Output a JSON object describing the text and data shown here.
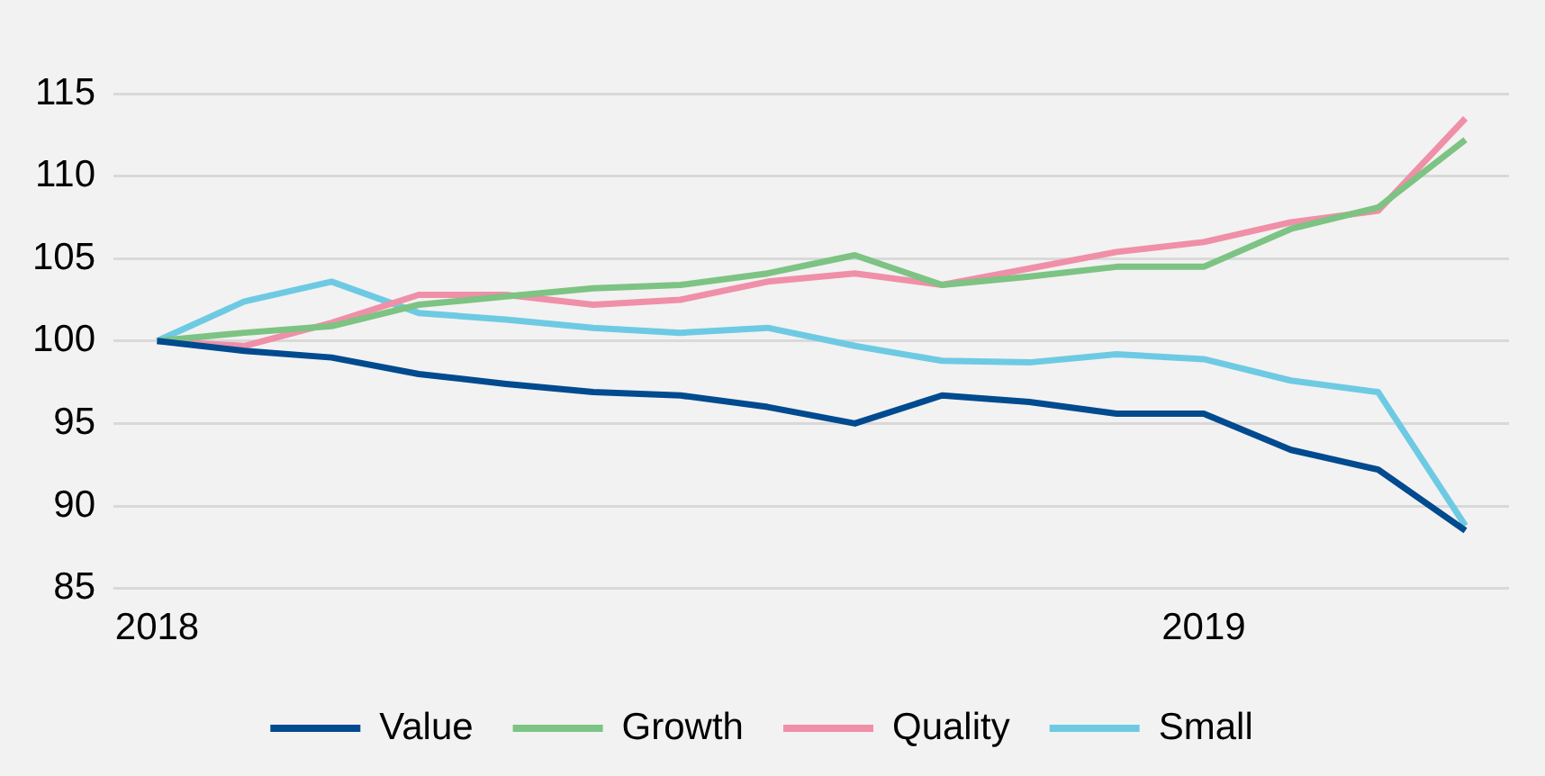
{
  "chart_data": {
    "type": "line",
    "categories": [
      "2018",
      null,
      null,
      null,
      null,
      null,
      null,
      null,
      null,
      null,
      null,
      null,
      "2019",
      null,
      null,
      null
    ],
    "series": [
      {
        "name": "Value",
        "color": "#004a8f",
        "values": [
          100,
          99.4,
          99.0,
          98.0,
          97.4,
          96.9,
          96.7,
          96.0,
          95.0,
          96.7,
          96.3,
          95.6,
          95.6,
          93.4,
          92.2,
          88.5
        ]
      },
      {
        "name": "Growth",
        "color": "#7dc383",
        "values": [
          100,
          100.5,
          100.9,
          102.2,
          102.7,
          103.2,
          103.4,
          104.1,
          105.2,
          103.4,
          103.9,
          104.5,
          104.5,
          106.8,
          108.1,
          112.2
        ]
      },
      {
        "name": "Quality",
        "color": "#f08fa8",
        "values": [
          100,
          99.7,
          101.1,
          102.8,
          102.8,
          102.2,
          102.5,
          103.6,
          104.1,
          103.4,
          104.4,
          105.4,
          106.0,
          107.2,
          107.9,
          113.5
        ]
      },
      {
        "name": "Small",
        "color": "#6ecae3",
        "values": [
          100,
          102.4,
          103.6,
          101.7,
          101.3,
          100.8,
          100.5,
          100.8,
          99.7,
          98.8,
          98.7,
          99.2,
          98.9,
          97.6,
          96.9,
          88.8
        ]
      }
    ],
    "ylim": [
      85,
      115
    ],
    "yticks": [
      85,
      90,
      95,
      100,
      105,
      110,
      115
    ],
    "grid": "y",
    "legend": "bottom",
    "marker": "none",
    "line_style": "solid"
  }
}
